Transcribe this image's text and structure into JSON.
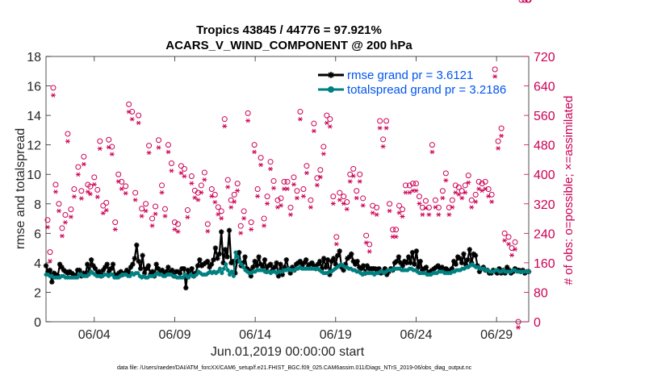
{
  "chart_data": {
    "type": "line",
    "title": [
      "Tropics 43845 / 44776 = 97.921%",
      "ACARS_V_WIND_COMPONENT @ 200 hPa"
    ],
    "xlabel": "Jun.01,2019 00:00:00 start",
    "ylabel": "rmse and totalspread",
    "y2label": "# of obs: o=possible; ×=assimilated",
    "xlim": [
      1,
      31
    ],
    "ylim": [
      0,
      18
    ],
    "y2lim": [
      0,
      720
    ],
    "xticks": [
      4,
      9,
      14,
      19,
      24,
      29
    ],
    "xtick_labels": [
      "06/04",
      "06/09",
      "06/14",
      "06/19",
      "06/24",
      "06/29"
    ],
    "yticks": [
      0,
      2,
      4,
      6,
      8,
      10,
      12,
      14,
      16,
      18
    ],
    "y2ticks": [
      0,
      80,
      160,
      240,
      320,
      400,
      480,
      560,
      640,
      720
    ],
    "legend_location": "top-right",
    "series": [
      {
        "name": "rmse grand pr = 3.6121",
        "color": "#000000",
        "marker": "asterisk",
        "values": [
          3.8,
          3.4,
          3.5,
          2.7,
          3.3,
          3.2,
          3.1,
          3.9,
          3.7,
          3.5,
          3.4,
          3.3,
          3.4,
          3.3,
          3.2,
          3.1,
          3.5,
          3.5,
          3.1,
          3.3,
          3.2,
          3.9,
          3.4,
          4.2,
          3.8,
          3.6,
          3.3,
          3.4,
          3.1,
          3.5,
          3.7,
          3.9,
          3.4,
          3.6,
          3.9,
          3.2,
          3.1,
          3.3,
          3.4,
          3.2,
          3.3,
          3.5,
          3.3,
          3.7,
          3.9,
          4.3,
          5.2,
          4.1,
          3.6,
          4.5,
          3.3,
          3.6,
          3.8,
          3.2,
          3.4,
          3.1,
          3.9,
          3.6,
          3.3,
          3.5,
          3.2,
          3.4,
          3.7,
          3.3,
          3.5,
          3.1,
          3.4,
          3.4,
          3.3,
          3.6,
          3.6,
          2.3,
          3.5,
          3.2,
          3.6,
          3.1,
          3.3,
          3.8,
          4.2,
          3.8,
          3.9,
          4.0,
          4.1,
          3.7,
          3.9,
          4.2,
          5.0,
          4.3,
          4.6,
          6.1,
          4.0,
          4.9,
          4.4,
          6.2,
          4.0,
          4.1,
          3.3,
          4.1,
          4.7,
          3.8,
          4.0,
          4.4,
          3.6,
          3.5,
          3.1,
          3.7,
          4.1,
          3.8,
          4.4,
          3.9,
          3.7,
          4.2,
          3.4,
          3.8,
          3.9,
          3.5,
          3.7,
          4.0,
          3.1,
          3.9,
          3.2,
          3.7,
          4.2,
          3.6,
          3.3,
          3.7,
          3.5,
          3.9,
          4.0,
          4.1,
          3.8,
          4.0,
          4.2,
          3.7,
          3.9,
          4.0,
          3.8,
          3.6,
          3.9,
          4.1,
          3.6,
          4.3,
          3.7,
          4.2,
          3.2,
          4.1,
          4.3,
          3.9,
          4.5,
          4.8,
          3.7,
          3.5,
          3.9,
          4.3,
          4.4,
          4.6,
          4.1,
          3.9,
          4.1,
          3.7,
          3.6,
          3.8,
          3.3,
          3.8,
          3.6,
          3.6,
          3.6,
          3.6,
          3.4,
          3.6,
          3.3,
          3.4,
          3.6,
          3.2,
          3.4,
          3.6,
          3.5,
          4.0,
          4.1,
          4.4,
          4.0,
          3.8,
          4.1,
          4.0,
          4.4,
          4.0,
          4.7,
          3.9,
          4.8,
          3.7,
          4.1,
          3.5,
          3.6,
          3.7,
          3.3,
          3.4,
          3.5,
          3.6,
          3.7,
          3.8,
          3.6,
          3.7,
          3.5,
          3.6,
          3.5,
          3.4,
          3.6,
          4.1,
          3.9,
          4.4,
          4.3,
          4.0,
          4.6,
          3.9,
          4.2,
          4.9,
          4.0,
          4.6,
          4.5,
          3.8,
          3.4,
          3.6,
          3.7,
          3.5,
          3.5,
          3.3,
          3.3,
          3.5,
          3.4,
          3.3,
          3.6,
          3.3,
          3.5,
          3.3,
          3.7,
          3.5,
          3.3,
          3.4,
          3.6,
          3.5,
          3.5,
          3.4,
          3.5,
          3.3,
          3.4,
          3.4
        ]
      },
      {
        "name": "totalspread grand pr = 3.2186",
        "color": "#008080",
        "marker": "circle",
        "values": [
          3.2,
          3.2,
          3.1,
          3.1,
          3.0,
          3.0,
          3.0,
          3.0,
          3.1,
          3.1,
          3.0,
          3.0,
          3.0,
          3.0,
          3.0,
          3.0,
          3.0,
          3.2,
          3.2,
          3.1,
          3.1,
          3.1,
          3.2,
          3.4,
          3.3,
          3.2,
          3.1,
          3.1,
          3.1,
          3.1,
          3.2,
          3.2,
          3.1,
          3.2,
          3.2,
          3.0,
          3.0,
          3.0,
          3.1,
          3.2,
          3.2,
          3.2,
          3.1,
          3.1,
          3.3,
          3.2,
          3.3,
          3.3,
          3.1,
          3.0,
          3.1,
          3.0,
          3.0,
          3.1,
          3.1,
          3.1,
          3.2,
          3.3,
          3.2,
          3.2,
          3.1,
          3.1,
          3.2,
          3.2,
          3.2,
          3.1,
          3.1,
          3.0,
          3.0,
          3.0,
          3.0,
          3.2,
          3.1,
          3.0,
          3.2,
          3.1,
          3.1,
          3.2,
          3.4,
          3.3,
          3.2,
          3.2,
          3.2,
          3.3,
          3.4,
          3.3,
          3.4,
          3.3,
          3.4,
          3.6,
          3.3,
          3.6,
          3.9,
          3.5,
          3.2,
          3.4,
          3.1,
          4.7,
          4.4,
          4.1,
          3.9,
          3.7,
          3.5,
          3.4,
          3.3,
          3.3,
          3.4,
          3.4,
          3.5,
          3.5,
          3.5,
          3.5,
          3.4,
          3.4,
          3.4,
          3.3,
          3.4,
          3.4,
          3.3,
          3.4,
          3.4,
          3.4,
          3.5,
          3.5,
          3.6,
          3.5,
          3.5,
          3.5,
          3.6,
          3.6,
          3.7,
          3.6,
          3.6,
          3.6,
          3.6,
          3.6,
          3.6,
          3.6,
          3.6,
          3.6,
          3.5,
          3.4,
          3.3,
          3.3,
          3.3,
          3.4,
          3.4,
          3.5,
          3.6,
          3.7,
          3.8,
          3.9,
          3.8,
          3.7,
          3.7,
          3.6,
          3.6,
          3.5,
          3.5,
          3.4,
          3.4,
          3.3,
          3.2,
          3.3,
          3.3,
          3.3,
          3.3,
          3.3,
          3.2,
          3.3,
          3.3,
          3.4,
          3.4,
          3.3,
          3.4,
          3.5,
          3.5,
          3.5,
          3.6,
          3.6,
          3.6,
          3.6,
          3.5,
          3.5,
          3.5,
          3.5,
          3.6,
          3.6,
          3.5,
          3.5,
          3.4,
          3.3,
          3.3,
          3.3,
          3.3,
          3.2,
          3.2,
          3.2,
          3.3,
          3.3,
          3.3,
          3.4,
          3.4,
          3.4,
          3.3,
          3.3,
          3.3,
          3.3,
          3.4,
          3.4,
          3.5,
          3.5,
          3.5,
          3.6,
          3.6,
          3.7,
          3.7,
          3.8,
          3.9,
          3.8,
          3.7,
          3.7,
          3.6,
          3.6,
          3.6,
          3.5,
          3.5,
          3.4,
          3.4,
          3.4,
          3.5,
          3.5,
          3.4,
          3.4,
          3.5,
          3.4,
          3.4,
          3.4,
          3.4,
          3.5,
          3.5,
          3.4,
          3.4,
          3.4,
          3.4,
          3.4,
          3.4,
          3.4
        ]
      }
    ],
    "obs_series": {
      "axis": "right",
      "color": "#cc0055",
      "x": [
        1.1,
        1.25,
        1.45,
        1.6,
        1.8,
        2.0,
        2.2,
        2.35,
        2.55,
        2.75,
        3.0,
        3.2,
        3.35,
        3.6,
        3.75,
        4.0,
        4.2,
        4.35,
        4.55,
        4.75,
        4.9,
        5.1,
        5.3,
        5.5,
        5.7,
        5.95,
        6.15,
        6.35,
        6.55,
        6.75,
        6.95,
        7.2,
        7.4,
        7.6,
        7.8,
        8.0,
        8.2,
        8.4,
        8.6,
        8.8,
        9.0,
        9.2,
        9.4,
        9.6,
        9.8,
        10.05,
        10.25,
        10.45,
        10.65,
        10.85,
        11.05,
        11.3,
        11.5,
        11.7,
        11.9,
        12.1,
        12.3,
        12.5,
        12.7,
        12.9,
        13.1,
        13.3,
        13.55,
        13.75,
        13.95,
        14.15,
        14.35,
        14.55,
        14.75,
        14.95,
        15.15,
        15.4,
        15.6,
        15.8,
        16.0,
        16.2,
        16.4,
        16.6,
        16.8,
        17.0,
        17.2,
        17.45,
        17.65,
        17.85,
        18.05,
        18.25,
        18.45,
        18.65,
        18.85,
        19.05,
        19.25,
        19.5,
        19.7,
        19.9,
        20.1,
        20.3,
        20.5,
        20.7,
        20.9,
        21.1,
        21.3,
        21.55,
        21.75,
        21.95,
        22.15,
        22.35,
        22.55,
        22.75,
        22.95,
        23.15,
        23.35,
        23.6,
        23.8,
        24.0,
        24.2,
        24.4,
        24.6,
        24.8,
        25.0,
        25.2,
        25.4,
        25.65,
        25.85,
        26.05,
        26.25,
        26.45,
        26.65,
        26.85,
        27.05,
        27.25,
        27.45,
        27.7,
        27.9,
        28.1,
        28.3,
        28.5,
        28.7,
        28.9,
        29.1,
        29.3,
        29.5,
        29.75,
        29.95,
        30.15,
        30.35,
        30.55,
        30.75,
        30.95,
        31.0
      ],
      "possible": [
        276,
        189,
        635,
        372,
        320,
        254,
        290,
        510,
        305,
        360,
        420,
        355,
        448,
        372,
        367,
        392,
        358,
        490,
        315,
        323,
        494,
        475,
        270,
        400,
        380,
        368,
        590,
        570,
        350,
        560,
        307,
        320,
        478,
        280,
        313,
        493,
        370,
        306,
        480,
        430,
        270,
        265,
        423,
        415,
        303,
        395,
        356,
        350,
        370,
        405,
        265,
        360,
        345,
        311,
        300,
        550,
        385,
        330,
        345,
        375,
        260,
        300,
        566,
        270,
        480,
        360,
        445,
        280,
        340,
        434,
        382,
        330,
        335,
        380,
        380,
        310,
        392,
        355,
        570,
        360,
        423,
        330,
        538,
        390,
        412,
        475,
        560,
        550,
        340,
        230,
        350,
        340,
        325,
        400,
        415,
        355,
        400,
        335,
        234,
        210,
        315,
        310,
        545,
        495,
        545,
        320,
        250,
        250,
        315,
        305,
        370,
        370,
        375,
        375,
        340,
        310,
        328,
        310,
        480,
        330,
        310,
        355,
        403,
        310,
        330,
        370,
        365,
        355,
        370,
        397,
        330,
        345,
        380,
        375,
        380,
        360,
        345,
        685,
        490,
        525,
        240,
        230,
        200,
        216,
        0
      ],
      "assimilated": [
        272,
        180,
        630,
        368,
        316,
        248,
        285,
        505,
        300,
        355,
        415,
        350,
        443,
        368,
        362,
        388,
        354,
        485,
        310,
        318,
        489,
        470,
        266,
        396,
        376,
        364,
        585,
        565,
        346,
        555,
        302,
        316,
        474,
        276,
        308,
        488,
        366,
        302,
        476,
        425,
        266,
        260,
        419,
        410,
        299,
        391,
        352,
        346,
        366,
        401,
        261,
        356,
        340,
        307,
        296,
        546,
        381,
        326,
        341,
        371,
        256,
        296,
        561,
        266,
        476,
        356,
        441,
        276,
        336,
        430,
        378,
        326,
        331,
        376,
        376,
        306,
        388,
        351,
        565,
        356,
        419,
        326,
        533,
        386,
        408,
        471,
        555,
        545,
        336,
        226,
        346,
        336,
        321,
        396,
        411,
        351,
        396,
        331,
        230,
        206,
        311,
        306,
        541,
        491,
        541,
        316,
        246,
        246,
        311,
        301,
        366,
        366,
        371,
        371,
        336,
        306,
        324,
        306,
        476,
        326,
        306,
        351,
        399,
        306,
        326,
        366,
        361,
        351,
        366,
        393,
        326,
        341,
        376,
        371,
        376,
        356,
        341,
        681,
        486,
        520,
        236,
        226,
        196,
        212,
        0
      ]
    },
    "footnote": "data file: /Users/raeder/DAI/ATM_forcXX/CAM6_setup/f.e21.FHIST_BGC.f09_025.CAM6assim.011/Diags_NTrS_2019-06/obs_diag_output.nc"
  }
}
